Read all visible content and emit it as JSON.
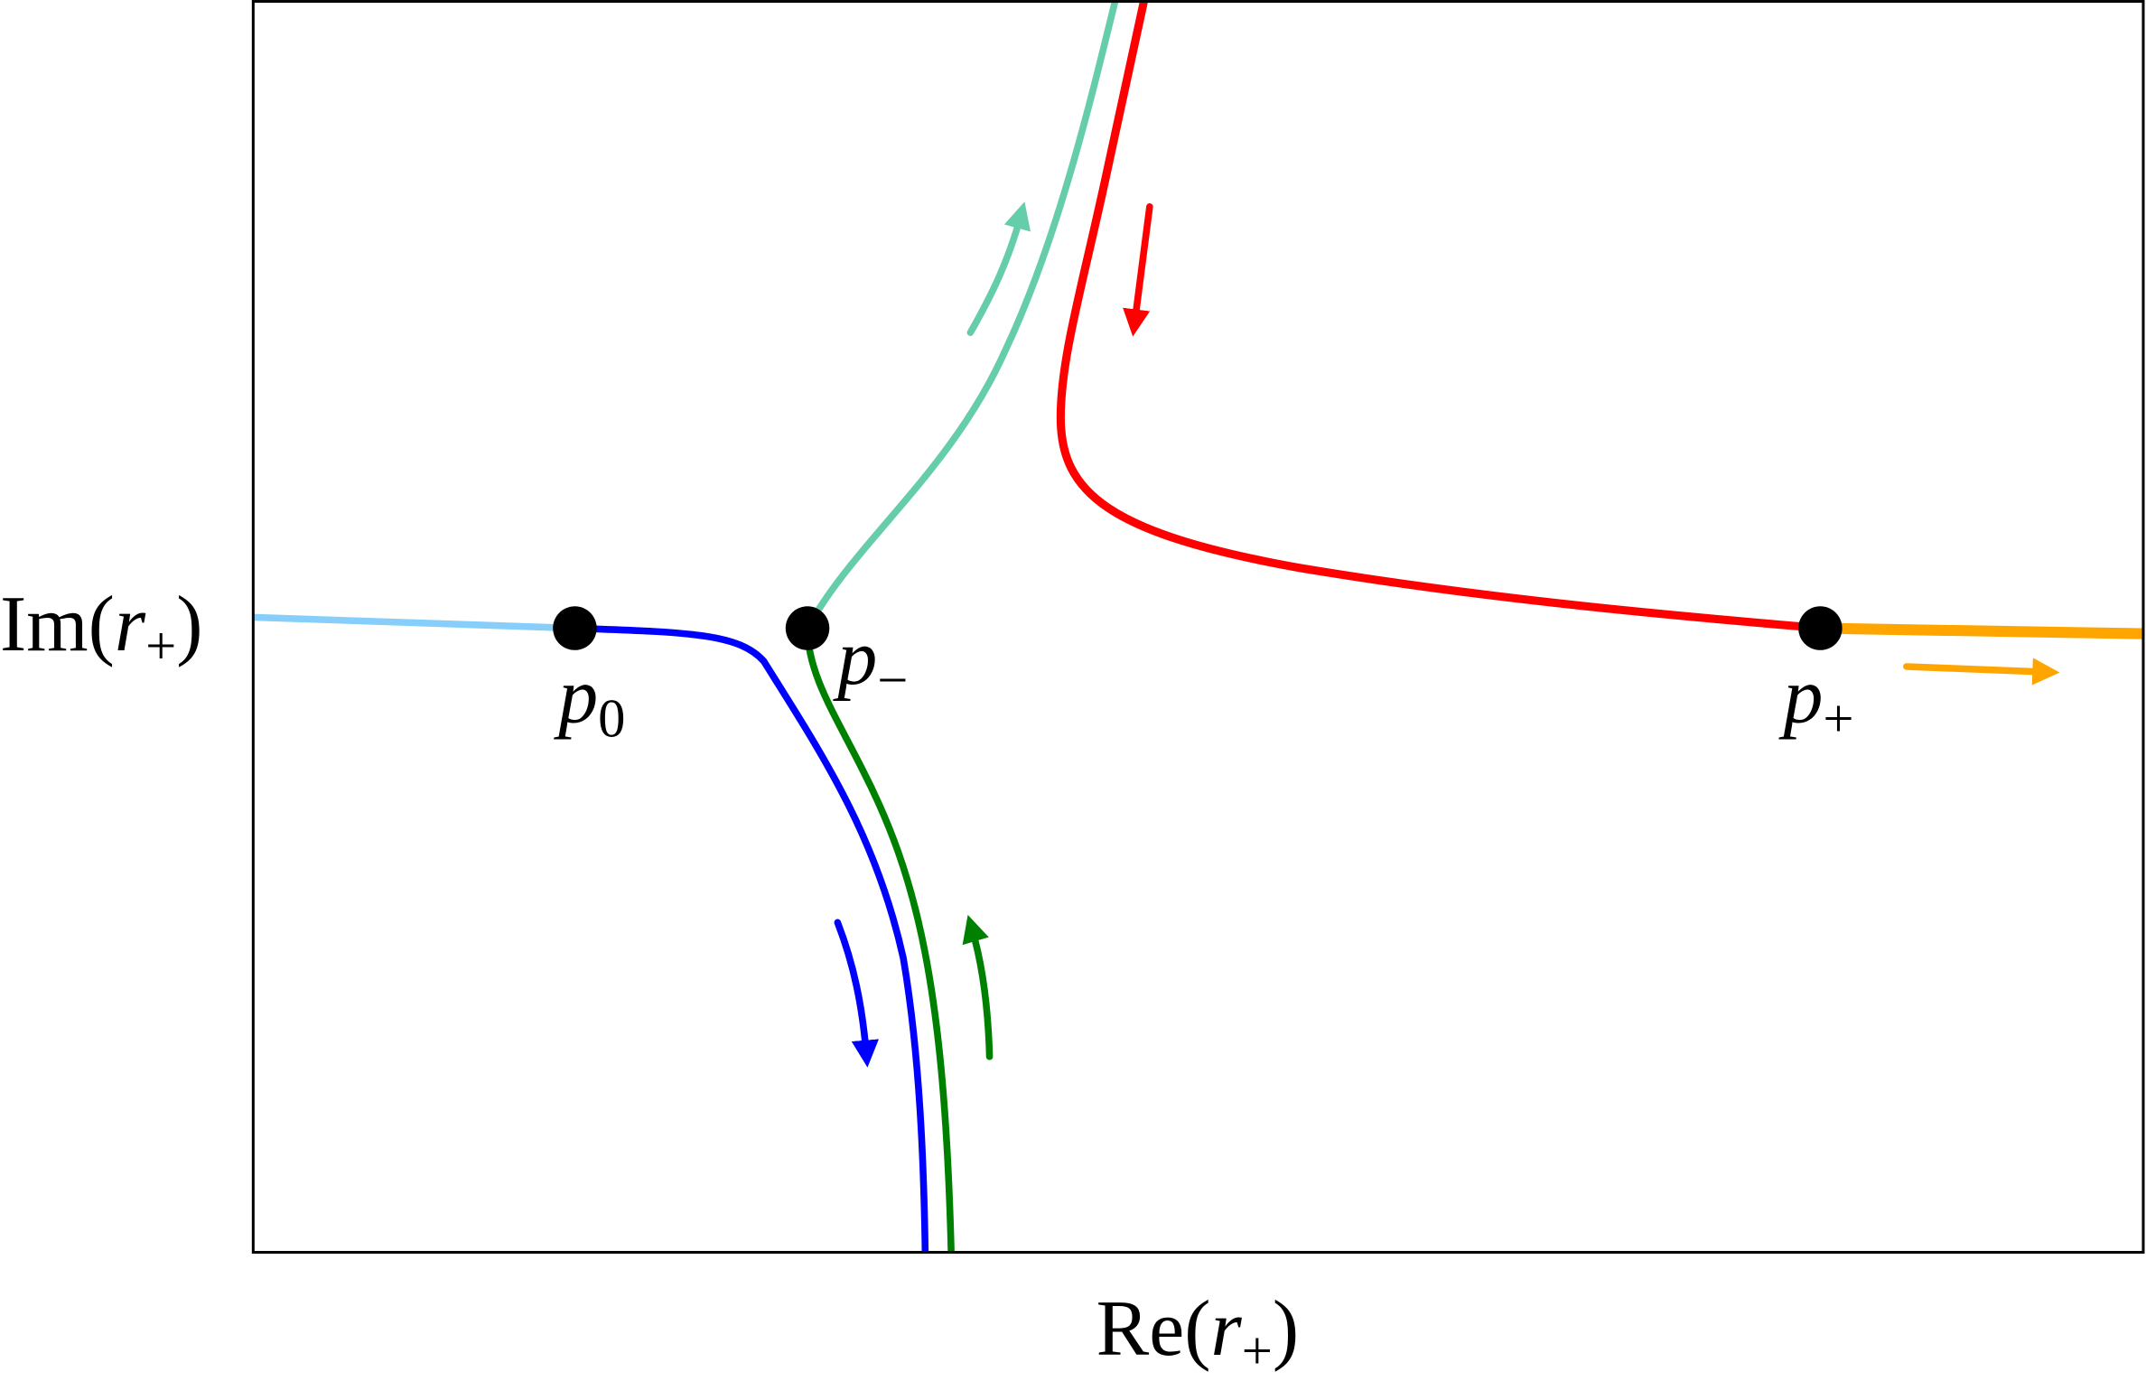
{
  "axes": {
    "y_label": [
      "Im(",
      "r",
      "+",
      ")"
    ],
    "x_label": [
      "Re(",
      "r",
      "+",
      ")"
    ]
  },
  "points": [
    {
      "base": "p",
      "sub": "0"
    },
    {
      "base": "p",
      "sub": "−"
    },
    {
      "base": "p",
      "sub": "+"
    }
  ]
}
